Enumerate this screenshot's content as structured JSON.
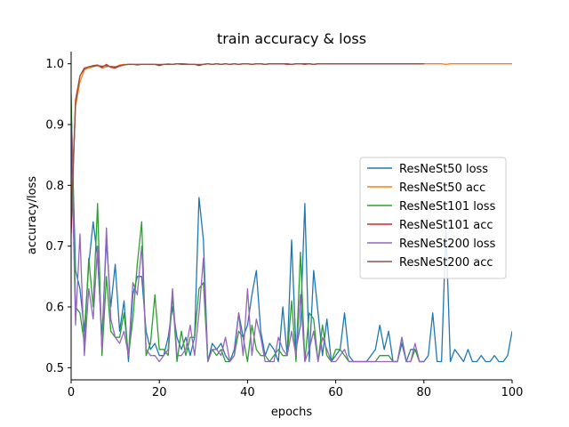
{
  "chart_data": {
    "type": "line",
    "title": "train accuracy & loss",
    "xlabel": "epochs",
    "ylabel": "accuracy/loss",
    "xlim": [
      0,
      100
    ],
    "ylim": [
      0.48,
      1.02
    ],
    "xticks": [
      0,
      20,
      40,
      60,
      80,
      100
    ],
    "yticks": [
      0.5,
      0.6,
      0.7,
      0.8,
      0.9,
      1.0
    ],
    "xtick_labels": [
      "0",
      "20",
      "40",
      "60",
      "80",
      "100"
    ],
    "ytick_labels": [
      "0.5",
      "0.6",
      "0.7",
      "0.8",
      "0.9",
      "1.0"
    ],
    "grid": false,
    "legend_position": "center-right",
    "series": [
      {
        "name": "ResNeSt50 loss",
        "color": "#1f77b4",
        "x": [
          0,
          1,
          2,
          3,
          4,
          5,
          6,
          7,
          8,
          9,
          10,
          11,
          12,
          13,
          14,
          15,
          16,
          17,
          18,
          19,
          20,
          21,
          22,
          23,
          24,
          25,
          26,
          27,
          28,
          29,
          30,
          31,
          32,
          33,
          34,
          35,
          36,
          37,
          38,
          39,
          40,
          41,
          42,
          43,
          44,
          45,
          46,
          47,
          48,
          49,
          50,
          51,
          52,
          53,
          54,
          55,
          56,
          57,
          58,
          59,
          60,
          61,
          62,
          63,
          64,
          65,
          66,
          67,
          68,
          69,
          70,
          71,
          72,
          73,
          74,
          75,
          76,
          77,
          78,
          79,
          80,
          81,
          82,
          83,
          84,
          85,
          86,
          87,
          88,
          89,
          90,
          91,
          92,
          93,
          94,
          95,
          96,
          97,
          98,
          99,
          100
        ],
        "y": [
          0.93,
          0.66,
          0.63,
          0.56,
          0.67,
          0.74,
          0.68,
          0.55,
          0.71,
          0.6,
          0.67,
          0.56,
          0.61,
          0.51,
          0.62,
          0.65,
          0.65,
          0.56,
          0.53,
          0.54,
          0.52,
          0.52,
          0.55,
          0.6,
          0.55,
          0.53,
          0.55,
          0.52,
          0.55,
          0.78,
          0.71,
          0.51,
          0.54,
          0.53,
          0.54,
          0.52,
          0.51,
          0.53,
          0.59,
          0.55,
          0.57,
          0.62,
          0.66,
          0.56,
          0.52,
          0.54,
          0.53,
          0.51,
          0.6,
          0.52,
          0.71,
          0.53,
          0.57,
          0.77,
          0.51,
          0.66,
          0.59,
          0.52,
          0.58,
          0.51,
          0.52,
          0.53,
          0.59,
          0.52,
          0.51,
          0.51,
          0.51,
          0.51,
          0.52,
          0.53,
          0.57,
          0.53,
          0.56,
          0.51,
          0.51,
          0.54,
          0.51,
          0.53,
          0.53,
          0.51,
          0.51,
          0.52,
          0.59,
          0.51,
          0.51,
          0.73,
          0.51,
          0.53,
          0.52,
          0.51,
          0.53,
          0.51,
          0.51,
          0.52,
          0.51,
          0.51,
          0.52,
          0.51,
          0.51,
          0.52,
          0.56
        ]
      },
      {
        "name": "ResNeSt50 acc",
        "color": "#ff7f0e",
        "x": [
          0,
          1,
          2,
          3,
          4,
          5,
          6,
          7,
          8,
          9,
          10,
          11,
          12,
          13,
          14,
          15,
          16,
          17,
          18,
          19,
          20,
          21,
          22,
          23,
          24,
          25,
          26,
          27,
          28,
          29,
          30,
          31,
          32,
          33,
          34,
          35,
          36,
          37,
          38,
          39,
          40,
          41,
          42,
          43,
          44,
          45,
          46,
          47,
          48,
          49,
          50,
          51,
          52,
          53,
          54,
          55,
          56,
          57,
          58,
          59,
          60,
          61,
          62,
          63,
          64,
          65,
          66,
          67,
          68,
          69,
          70,
          71,
          72,
          73,
          74,
          75,
          76,
          77,
          78,
          79,
          80,
          81,
          82,
          83,
          84,
          85,
          86,
          87,
          88,
          89,
          90,
          91,
          92,
          93,
          94,
          95,
          96,
          97,
          98,
          99,
          100
        ],
        "y": [
          0.76,
          0.93,
          0.97,
          0.99,
          0.993,
          0.995,
          0.997,
          0.993,
          0.995,
          0.996,
          0.994,
          0.998,
          0.999,
          0.999,
          0.999,
          0.999,
          0.999,
          0.999,
          0.999,
          0.999,
          0.998,
          0.999,
          1.0,
          0.999,
          1.0,
          1.0,
          1.0,
          0.999,
          0.999,
          0.998,
          0.999,
          1.0,
          0.999,
          1.0,
          0.999,
          1.0,
          0.999,
          1.0,
          0.999,
          1.0,
          1.0,
          0.999,
          1.0,
          1.0,
          0.999,
          1.0,
          1.0,
          1.0,
          1.0,
          1.0,
          0.999,
          1.0,
          1.0,
          1.0,
          1.0,
          0.999,
          1.0,
          1.0,
          1.0,
          1.0,
          1.0,
          1.0,
          1.0,
          1.0,
          1.0,
          1.0,
          1.0,
          1.0,
          1.0,
          1.0,
          1.0,
          1.0,
          1.0,
          1.0,
          1.0,
          1.0,
          1.0,
          1.0,
          1.0,
          1.0,
          1.0,
          1.0,
          1.0,
          1.0,
          1.0,
          0.999,
          1.0,
          1.0,
          1.0,
          1.0,
          1.0,
          1.0,
          1.0,
          1.0,
          1.0,
          1.0,
          1.0,
          1.0,
          1.0,
          1.0,
          1.0
        ]
      },
      {
        "name": "ResNeSt101 loss",
        "color": "#2ca02c",
        "x": [
          0,
          1,
          2,
          3,
          4,
          5,
          6,
          7,
          8,
          9,
          10,
          11,
          12,
          13,
          14,
          15,
          16,
          17,
          18,
          19,
          20,
          21,
          22,
          23,
          24,
          25,
          26,
          27,
          28,
          29,
          30,
          31,
          32,
          33,
          34,
          35,
          36,
          37,
          38,
          39,
          40,
          41,
          42,
          43,
          44,
          45,
          46,
          47,
          48,
          49,
          50,
          51,
          52,
          53,
          54,
          55,
          56,
          57,
          58,
          59,
          60,
          61,
          62,
          63,
          64,
          65,
          66,
          67,
          68,
          69,
          70,
          71,
          72,
          73,
          74,
          75,
          76,
          77,
          78,
          79,
          80
        ],
        "y": [
          0.95,
          0.6,
          0.59,
          0.54,
          0.68,
          0.6,
          0.77,
          0.52,
          0.65,
          0.56,
          0.55,
          0.55,
          0.59,
          0.52,
          0.58,
          0.67,
          0.74,
          0.52,
          0.54,
          0.62,
          0.53,
          0.53,
          0.52,
          0.62,
          0.51,
          0.56,
          0.52,
          0.55,
          0.55,
          0.63,
          0.64,
          0.51,
          0.53,
          0.52,
          0.53,
          0.51,
          0.51,
          0.52,
          0.56,
          0.55,
          0.51,
          0.57,
          0.53,
          0.52,
          0.52,
          0.51,
          0.52,
          0.53,
          0.52,
          0.52,
          0.61,
          0.51,
          0.69,
          0.51,
          0.59,
          0.58,
          0.51,
          0.57,
          0.52,
          0.51,
          0.53,
          0.53,
          0.52,
          0.51,
          0.51,
          0.51,
          0.51,
          0.51,
          0.51,
          0.51,
          0.52,
          0.52,
          0.52,
          0.51,
          0.51,
          0.55,
          0.51,
          0.51,
          0.53,
          0.51,
          0.51
        ]
      },
      {
        "name": "ResNeSt101 acc",
        "color": "#d62728",
        "x": [
          0,
          1,
          2,
          3,
          4,
          5,
          6,
          7,
          8,
          9,
          10,
          11,
          12,
          13,
          14,
          15,
          16,
          17,
          18,
          19,
          20,
          21,
          22,
          23,
          24,
          25,
          26,
          27,
          28,
          29,
          30,
          31,
          32,
          33,
          34,
          35,
          36,
          37,
          38,
          39,
          40,
          41,
          42,
          43,
          44,
          45,
          46,
          47,
          48,
          49,
          50,
          51,
          52,
          53,
          54,
          55,
          56,
          57,
          58,
          59,
          60,
          61,
          62,
          63,
          64,
          65,
          66,
          67,
          68,
          69,
          70,
          71,
          72,
          73,
          74,
          75,
          76,
          77,
          78,
          79,
          80
        ],
        "y": [
          0.72,
          0.94,
          0.98,
          0.993,
          0.995,
          0.997,
          0.998,
          0.994,
          0.999,
          0.994,
          0.993,
          0.996,
          0.998,
          0.999,
          0.999,
          0.998,
          0.999,
          0.999,
          0.999,
          0.999,
          0.997,
          0.999,
          0.999,
          0.999,
          1.0,
          1.0,
          0.999,
          0.999,
          0.999,
          0.997,
          0.999,
          1.0,
          0.999,
          1.0,
          0.999,
          1.0,
          0.999,
          1.0,
          0.999,
          1.0,
          1.0,
          0.999,
          1.0,
          1.0,
          0.999,
          1.0,
          1.0,
          1.0,
          1.0,
          0.999,
          0.999,
          1.0,
          1.0,
          0.999,
          1.0,
          0.999,
          1.0,
          1.0,
          1.0,
          1.0,
          1.0,
          1.0,
          1.0,
          1.0,
          1.0,
          1.0,
          1.0,
          1.0,
          1.0,
          1.0,
          1.0,
          1.0,
          1.0,
          1.0,
          1.0,
          1.0,
          1.0,
          1.0,
          1.0,
          1.0,
          1.0
        ]
      },
      {
        "name": "ResNeSt200 loss",
        "color": "#9467bd",
        "x": [
          0,
          1,
          2,
          3,
          4,
          5,
          6,
          7,
          8,
          9,
          10,
          11,
          12,
          13,
          14,
          15,
          16,
          17,
          18,
          19,
          20,
          21,
          22,
          23,
          24,
          25,
          26,
          27,
          28,
          29,
          30,
          31,
          32,
          33,
          34,
          35,
          36,
          37,
          38,
          39,
          40,
          41,
          42,
          43,
          44,
          45,
          46,
          47,
          48,
          49,
          50,
          51,
          52,
          53,
          54,
          55,
          56,
          57,
          58,
          59,
          60,
          61,
          62,
          63,
          64,
          65,
          66,
          67,
          68,
          69,
          70,
          71,
          72,
          73,
          74,
          75,
          76,
          77,
          78,
          79,
          80
        ],
        "y": [
          0.9,
          0.57,
          0.72,
          0.52,
          0.63,
          0.58,
          0.7,
          0.53,
          0.73,
          0.58,
          0.55,
          0.54,
          0.56,
          0.52,
          0.64,
          0.62,
          0.7,
          0.53,
          0.52,
          0.52,
          0.51,
          0.52,
          0.53,
          0.63,
          0.52,
          0.52,
          0.53,
          0.57,
          0.52,
          0.59,
          0.68,
          0.51,
          0.53,
          0.53,
          0.52,
          0.55,
          0.51,
          0.52,
          0.59,
          0.52,
          0.63,
          0.52,
          0.58,
          0.55,
          0.51,
          0.51,
          0.51,
          0.55,
          0.53,
          0.52,
          0.56,
          0.52,
          0.62,
          0.51,
          0.53,
          0.56,
          0.51,
          0.55,
          0.53,
          0.51,
          0.51,
          0.52,
          0.53,
          0.51,
          0.51,
          0.51,
          0.51,
          0.51,
          0.51,
          0.51,
          0.51,
          0.51,
          0.51,
          0.51,
          0.51,
          0.55,
          0.51,
          0.51,
          0.54,
          0.51,
          0.51
        ]
      },
      {
        "name": "ResNeSt200 acc",
        "color": "#8c564b",
        "x": [
          0,
          1,
          2,
          3,
          4,
          5,
          6,
          7,
          8,
          9,
          10,
          11,
          12,
          13,
          14,
          15,
          16,
          17,
          18,
          19,
          20,
          21,
          22,
          23,
          24,
          25,
          26,
          27,
          28,
          29,
          30,
          31,
          32,
          33,
          34,
          35,
          36,
          37,
          38,
          39,
          40,
          41,
          42,
          43,
          44,
          45,
          46,
          47,
          48,
          49,
          50,
          51,
          52,
          53,
          54,
          55,
          56,
          57,
          58,
          59,
          60,
          61,
          62,
          63,
          64,
          65,
          66,
          67,
          68,
          69,
          70,
          71,
          72,
          73,
          74,
          75,
          76,
          77,
          78,
          79,
          80
        ],
        "y": [
          0.74,
          0.935,
          0.98,
          0.992,
          0.995,
          0.996,
          0.997,
          0.996,
          0.997,
          0.995,
          0.995,
          0.997,
          0.998,
          0.999,
          0.999,
          0.999,
          0.999,
          0.999,
          0.999,
          0.999,
          0.999,
          0.999,
          0.999,
          0.999,
          1.0,
          0.999,
          0.999,
          0.999,
          0.999,
          0.999,
          0.999,
          1.0,
          0.999,
          1.0,
          0.999,
          1.0,
          0.999,
          1.0,
          0.999,
          1.0,
          1.0,
          0.999,
          1.0,
          1.0,
          0.999,
          1.0,
          1.0,
          1.0,
          1.0,
          1.0,
          0.999,
          1.0,
          1.0,
          1.0,
          1.0,
          0.999,
          1.0,
          1.0,
          1.0,
          1.0,
          1.0,
          1.0,
          1.0,
          1.0,
          1.0,
          1.0,
          1.0,
          1.0,
          1.0,
          1.0,
          1.0,
          1.0,
          1.0,
          1.0,
          1.0,
          1.0,
          1.0,
          1.0,
          1.0,
          1.0,
          1.0
        ]
      }
    ]
  }
}
